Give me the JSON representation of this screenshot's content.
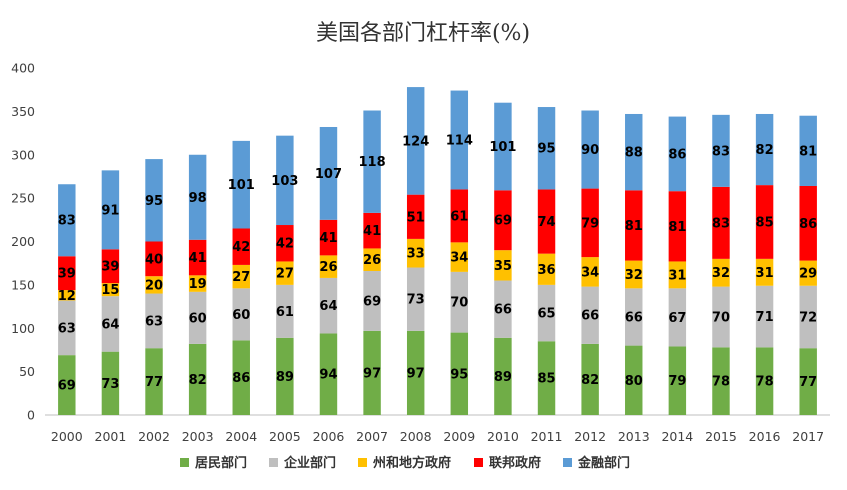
{
  "chart_data": {
    "type": "bar",
    "stacked": true,
    "title": "美国各部门杠杆率(%)",
    "xlabel": "",
    "ylabel": "",
    "ylim": [
      0,
      400
    ],
    "yticks": [
      0,
      50,
      100,
      150,
      200,
      250,
      300,
      350,
      400
    ],
    "grid": false,
    "legend_position": "bottom",
    "categories": [
      "2000",
      "2001",
      "2002",
      "2003",
      "2004",
      "2005",
      "2006",
      "2007",
      "2008",
      "2009",
      "2010",
      "2011",
      "2012",
      "2013",
      "2014",
      "2015",
      "2016",
      "2017"
    ],
    "series": [
      {
        "name": "居民部门",
        "color": "#70AD47",
        "values": [
          69,
          73,
          77,
          82,
          86,
          89,
          94,
          97,
          97,
          95,
          89,
          85,
          82,
          80,
          79,
          78,
          78,
          77
        ]
      },
      {
        "name": "企业部门",
        "color": "#BFBFBF",
        "values": [
          63,
          64,
          63,
          60,
          60,
          61,
          64,
          69,
          73,
          70,
          66,
          65,
          66,
          66,
          67,
          70,
          71,
          72
        ]
      },
      {
        "name": "州和地方政府",
        "color": "#FFC000",
        "values": [
          12,
          15,
          20,
          19,
          27,
          27,
          26,
          26,
          33,
          34,
          35,
          36,
          34,
          32,
          31,
          32,
          31,
          29
        ]
      },
      {
        "name": "联邦政府",
        "color": "#FF0000",
        "values": [
          39,
          39,
          40,
          41,
          42,
          42,
          41,
          41,
          51,
          61,
          69,
          74,
          79,
          81,
          81,
          83,
          85,
          86
        ]
      },
      {
        "name": "金融部门",
        "color": "#5B9BD5",
        "values": [
          83,
          91,
          95,
          98,
          101,
          103,
          107,
          118,
          124,
          114,
          101,
          95,
          90,
          88,
          86,
          83,
          82,
          81
        ]
      }
    ]
  }
}
